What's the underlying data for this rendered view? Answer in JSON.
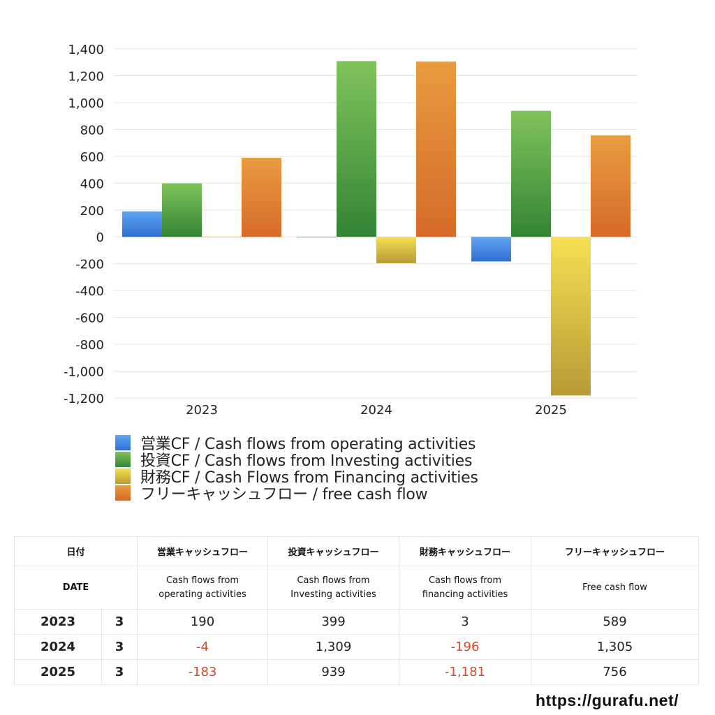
{
  "chart_data": {
    "type": "bar",
    "categories": [
      "2023",
      "2024",
      "2025"
    ],
    "series": [
      {
        "name": "営業CF / Cash flows from operating activities",
        "values": [
          190,
          -4,
          -183
        ],
        "color": "#4a8ee0"
      },
      {
        "name": "投資CF / Cash flows from Investing activities",
        "values": [
          399,
          1309,
          939
        ],
        "color": "#4ea43c"
      },
      {
        "name": "財務CF / Cash Flows from Financing activities",
        "values": [
          3,
          -196,
          -1181
        ],
        "color": "#e8c53e"
      },
      {
        "name": "フリーキャッシュフロー / free cash flow",
        "values": [
          589,
          1305,
          756
        ],
        "color": "#e5842f"
      }
    ],
    "ylim": [
      -1200,
      1400
    ],
    "yticks": [
      1400,
      1200,
      1000,
      800,
      600,
      400,
      200,
      0,
      -200,
      -400,
      -600,
      -800,
      -1000,
      -1200
    ],
    "ytick_labels": [
      "1,400",
      "1,200",
      "1,000",
      "800",
      "600",
      "400",
      "200",
      "0",
      "-200",
      "-400",
      "-600",
      "-800",
      "-1,000",
      "-1,200"
    ],
    "grid": true,
    "legend_position": "bottom"
  },
  "table": {
    "header_jp": [
      "日付",
      "営業キャッシュフロー",
      "投資キャッシュフロー",
      "財務キャッシュフロー",
      "フリーキャッシュフロー"
    ],
    "header_en": {
      "date": "DATE",
      "operating": [
        "Cash flows from",
        "operating activities"
      ],
      "investing": [
        "Cash flows from",
        "Investing activities"
      ],
      "financing": [
        "Cash flows from",
        "financing activities"
      ],
      "free": "Free cash flow"
    },
    "rows": [
      {
        "year": "2023",
        "month": "3",
        "operating": "190",
        "investing": "399",
        "financing": "3",
        "free": "589"
      },
      {
        "year": "2024",
        "month": "3",
        "operating": "-4",
        "investing": "1,309",
        "financing": "-196",
        "free": "1,305"
      },
      {
        "year": "2025",
        "month": "3",
        "operating": "-183",
        "investing": "939",
        "financing": "-1,181",
        "free": "756"
      }
    ]
  },
  "site": "https://gurafu.net/"
}
